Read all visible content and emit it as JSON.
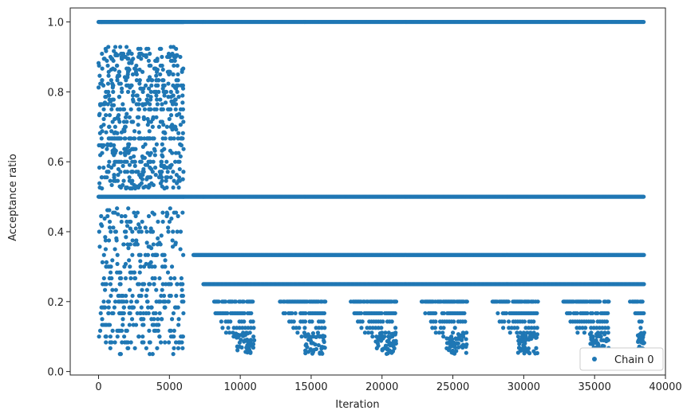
{
  "chart_data": {
    "type": "scatter",
    "xlabel": "Iteration",
    "ylabel": "Acceptance ratio",
    "xlim": [
      -2000,
      40000
    ],
    "ylim": [
      -0.01,
      1.04
    ],
    "xticks": [
      0,
      5000,
      10000,
      15000,
      20000,
      25000,
      30000,
      35000,
      40000
    ],
    "xtick_labels": [
      "0",
      "5000",
      "10000",
      "15000",
      "20000",
      "25000",
      "30000",
      "35000",
      "40000"
    ],
    "yticks": [
      0.0,
      0.2,
      0.4,
      0.6,
      0.8,
      1.0
    ],
    "ytick_labels": [
      "0.0",
      "0.2",
      "0.4",
      "0.6",
      "0.8",
      "1.0"
    ],
    "grid": false,
    "legend_position": "lower-right",
    "series": [
      {
        "name": "Chain 0",
        "color": "#1f77b4",
        "marker": "circle",
        "phases": [
          {
            "x_range": [
              0,
              6000
            ],
            "pattern": "warmup",
            "high_levels": [
              1.0
            ],
            "dense_band": [
              0.52,
              0.93
            ],
            "mid_band": [
              0.3,
              0.47
            ],
            "sparse_band": [
              0.05,
              0.3
            ]
          },
          {
            "x_range": [
              6000,
              38500
            ],
            "pattern": "discrete_levels",
            "continuous_levels": [
              1.0,
              0.5
            ],
            "gapped_levels": [
              0.3333,
              0.25
            ],
            "block_levels": [
              0.2,
              0.1667,
              0.1429,
              0.125,
              0.1111,
              0.1
            ],
            "blocks": [
              [
                8000,
                11000
              ],
              [
                12800,
                16000
              ],
              [
                17800,
                21000
              ],
              [
                22800,
                26000
              ],
              [
                27800,
                31000
              ],
              [
                32800,
                36000
              ],
              [
                37500,
                38500
              ]
            ],
            "block_tail_min": 0.05
          }
        ]
      }
    ]
  }
}
